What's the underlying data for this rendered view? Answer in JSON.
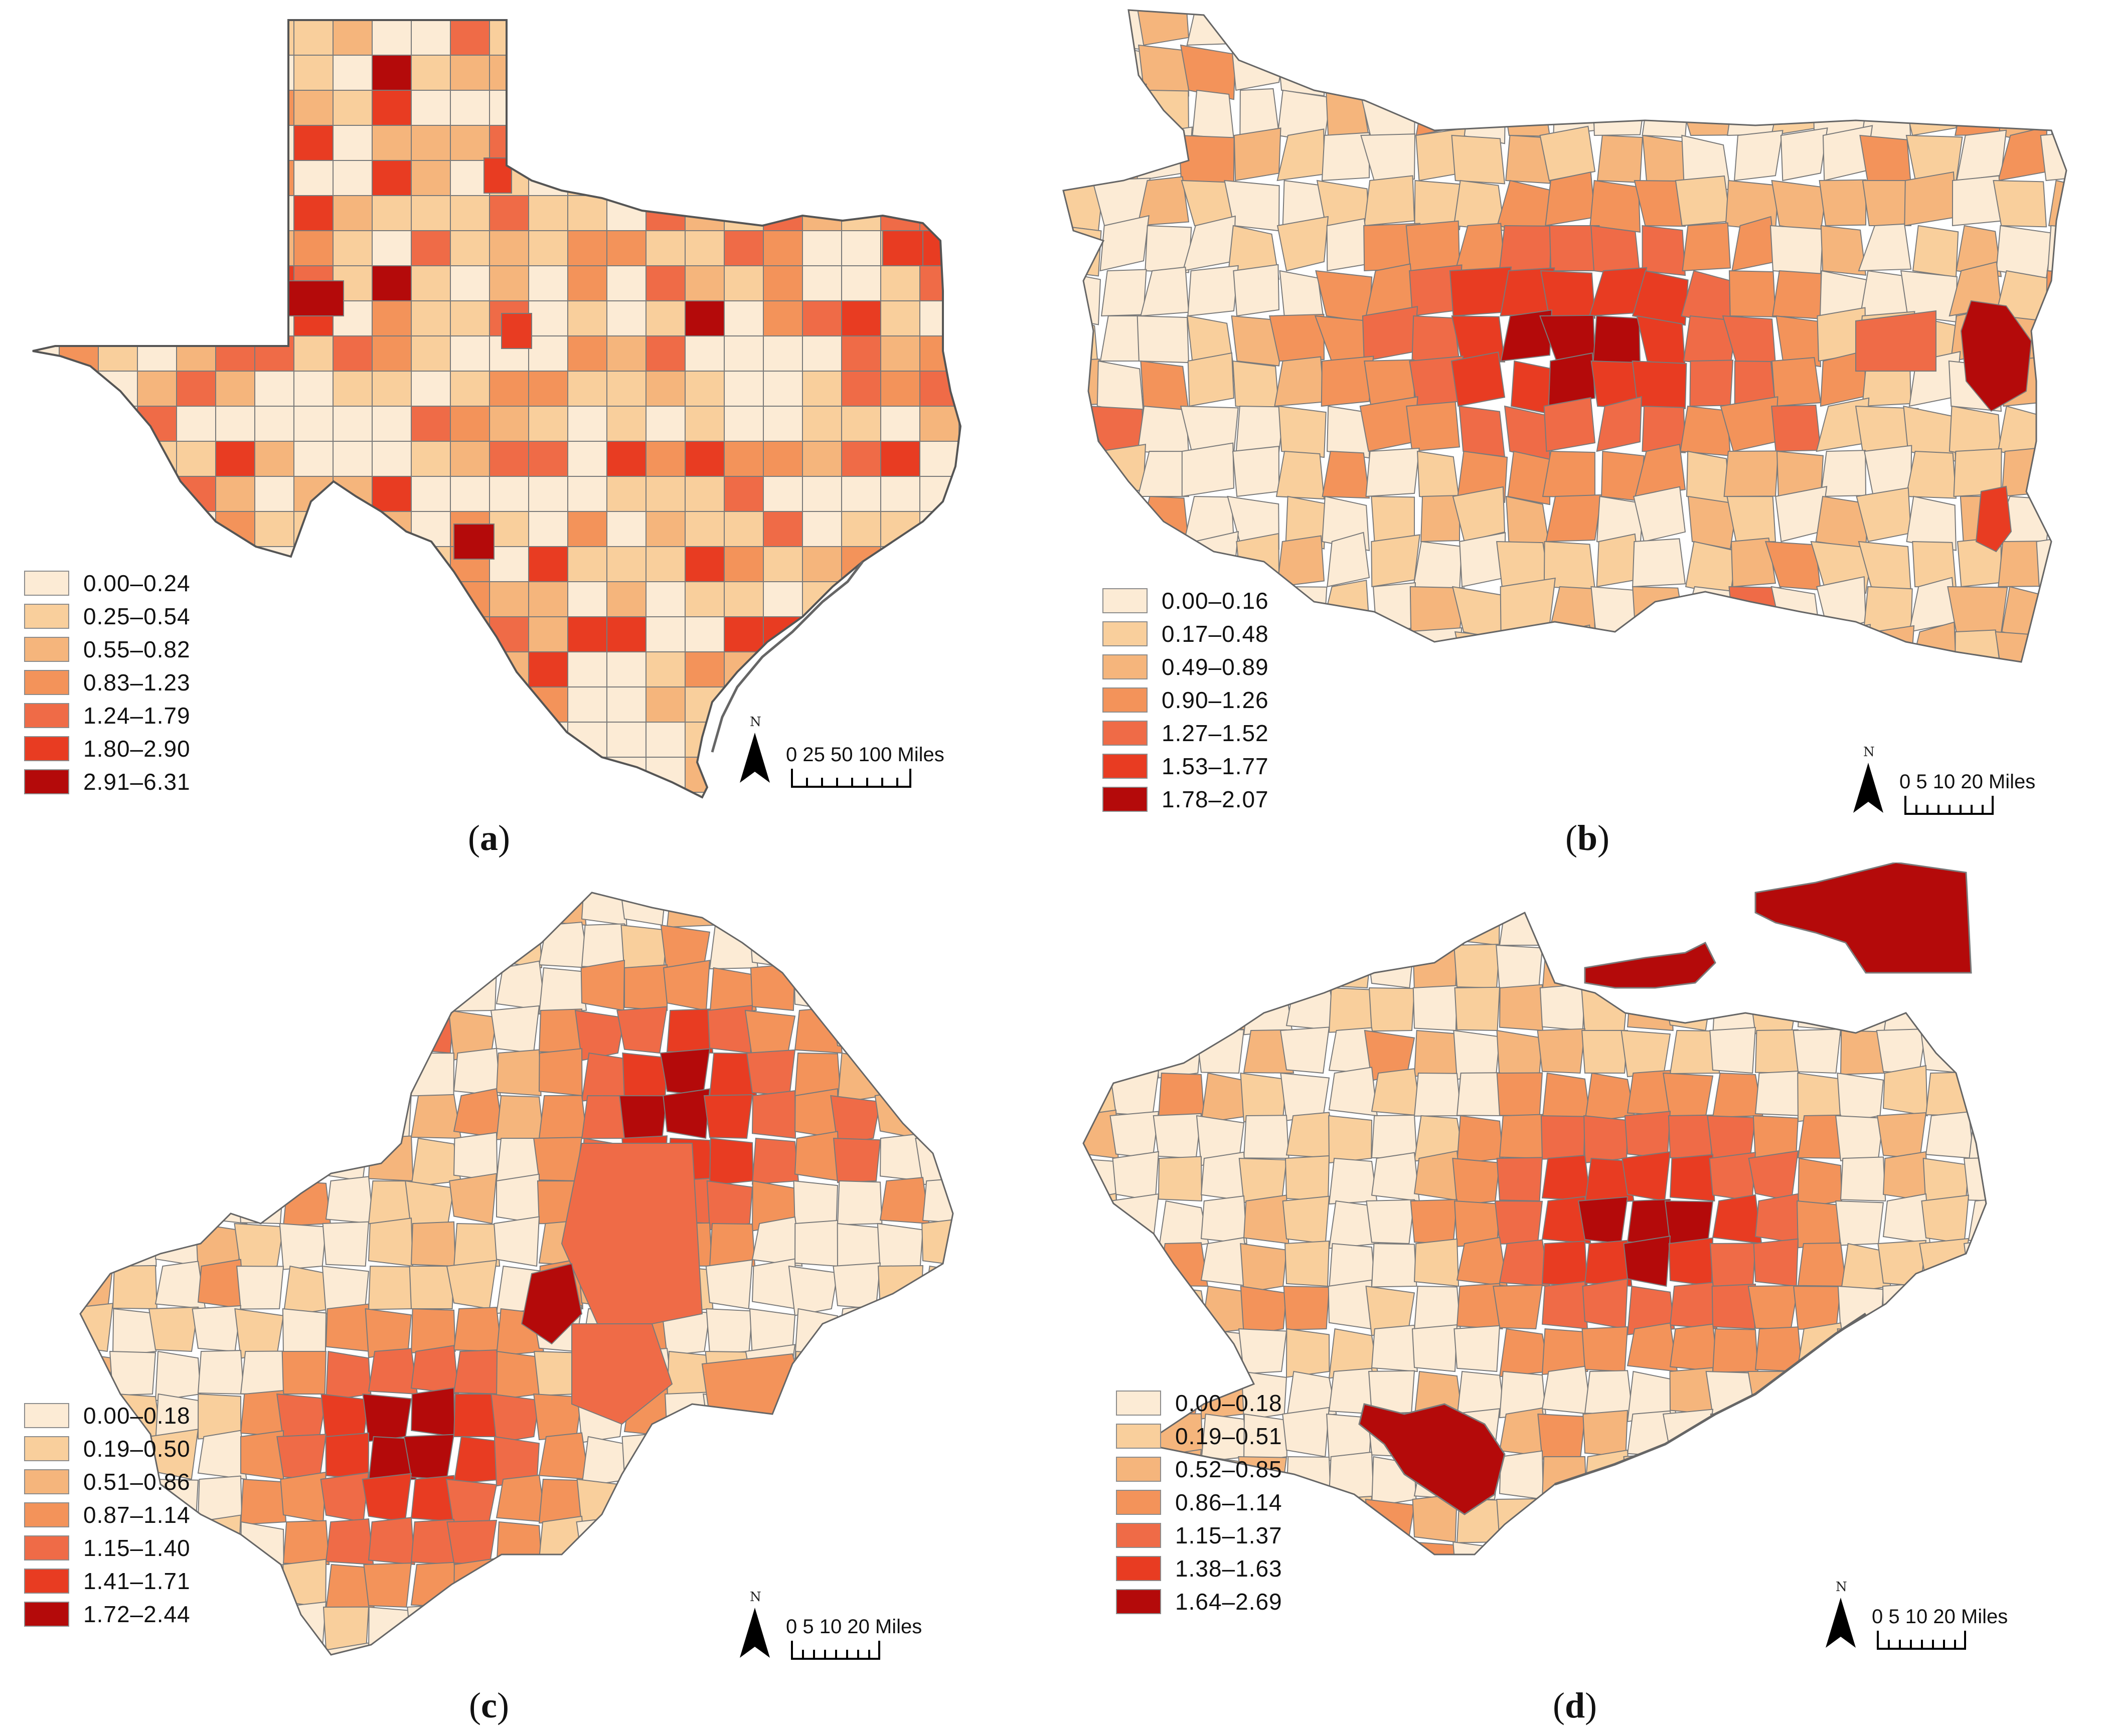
{
  "colors": {
    "class1": "#fcebd5",
    "class2": "#f9cf9c",
    "class3": "#f5b57c",
    "class4": "#f3935a",
    "class5": "#ef6b47",
    "class6": "#e83c22",
    "class7": "#b40a0a",
    "boundary": "#7a7a7a"
  },
  "panels": [
    {
      "id": "a",
      "caption_letter": "a",
      "legend": [
        "0.00–0.24",
        "0.25–0.54",
        "0.55–0.82",
        "0.83–1.23",
        "1.24–1.79",
        "1.80–2.90",
        "2.91–6.31"
      ],
      "scale": {
        "north": "N",
        "ticks": "0  25 50        100 Miles"
      }
    },
    {
      "id": "b",
      "caption_letter": "b",
      "legend": [
        "0.00–0.16",
        "0.17–0.48",
        "0.49–0.89",
        "0.90–1.26",
        "1.27–1.52",
        "1.53–1.77",
        "1.78–2.07"
      ],
      "scale": {
        "north": "N",
        "ticks": "0  5 10     20 Miles"
      }
    },
    {
      "id": "c",
      "caption_letter": "c",
      "legend": [
        "0.00–0.18",
        "0.19–0.50",
        "0.51–0.86",
        "0.87–1.14",
        "1.15–1.40",
        "1.41–1.71",
        "1.72–2.44"
      ],
      "scale": {
        "north": "N",
        "ticks": "0  5 10     20 Miles"
      }
    },
    {
      "id": "d",
      "caption_letter": "d",
      "legend": [
        "0.00–0.18",
        "0.19–0.51",
        "0.52–0.85",
        "0.86–1.14",
        "1.15–1.37",
        "1.38–1.63",
        "1.64–2.69"
      ],
      "scale": {
        "north": "N",
        "ticks": "0  5 10     20 Miles"
      }
    }
  ]
}
